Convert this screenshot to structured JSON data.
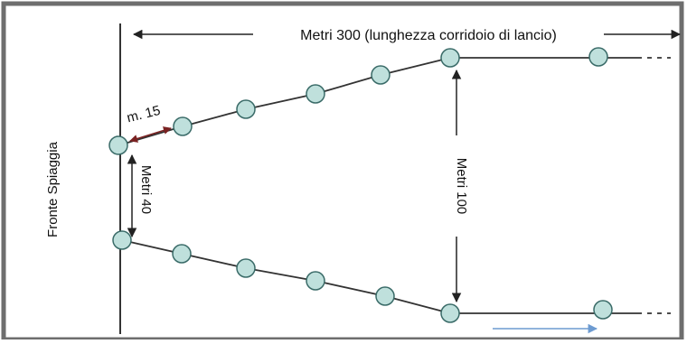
{
  "diagram": {
    "corridor_length_label": "Metri 300 (lunghezza corridoio di lancio)",
    "beach_label": "Fronte Spiaggia",
    "buoy_spacing_label": "m. 15",
    "entrance_width_label": "Metri 40",
    "channel_width_label": "Metri 100",
    "colors": {
      "frame": "#6e6e6e",
      "line": "#333333",
      "buoy_fill": "#bfe0dc",
      "buoy_stroke": "#3a6b68",
      "blue_arrow": "#6d9bd1"
    }
  }
}
